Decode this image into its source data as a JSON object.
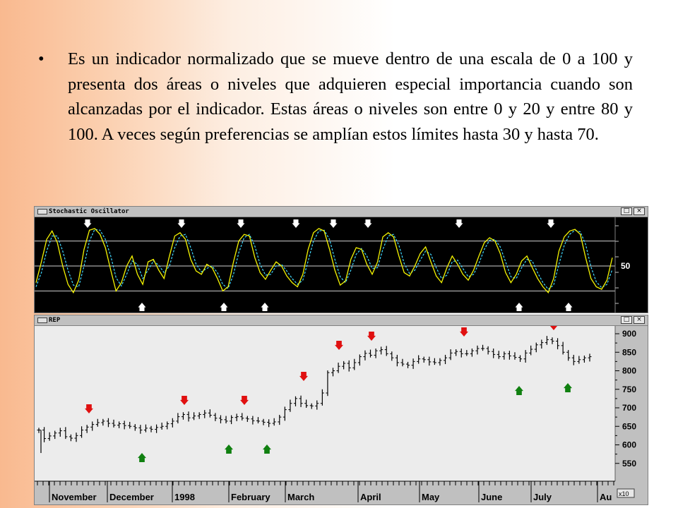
{
  "slide": {
    "bullet": "•",
    "text": "Es un indicador normalizado que se mueve dentro de una escala de 0 a 100 y presenta dos áreas o niveles que adquieren especial importancia cuando son alcanzadas por el indicador. Estas áreas o niveles son entre 0 y 20 y entre 80 y 100. A veces según preferencias se amplían estos límites hasta 30 y hasta 70."
  },
  "osc_window": {
    "title": "Stochastic Oscillator",
    "axis_label": "50",
    "restore_glyph": "□",
    "close_glyph": "×"
  },
  "price_window": {
    "title": "REP",
    "restore_glyph": "□",
    "close_glyph": "×",
    "scale_note": "x10"
  },
  "colors": {
    "osc_background": "#000000",
    "k_line": "#f4f400",
    "d_line": "#40d8ff",
    "osc_levels": "#d0d0d0",
    "price_background": "#ececec",
    "sell_arrow": "#e01010",
    "buy_arrow": "#108010",
    "osc_arrow": "#ffffff"
  },
  "chart_data": [
    {
      "type": "line",
      "title": "Stochastic Oscillator",
      "ylim": [
        0,
        100
      ],
      "reference_levels": [
        20,
        50,
        80
      ],
      "y_ticks": [
        "50"
      ],
      "series": [
        {
          "values": [
            30,
            55,
            82,
            92,
            78,
            50,
            28,
            18,
            33,
            70,
            93,
            95,
            88,
            72,
            45,
            20,
            30,
            50,
            62,
            40,
            28,
            55,
            58,
            45,
            35,
            62,
            86,
            90,
            82,
            58,
            44,
            40,
            52,
            48,
            35,
            20,
            25,
            55,
            80,
            88,
            86,
            60,
            42,
            34,
            45,
            55,
            50,
            38,
            30,
            25,
            40,
            70,
            90,
            95,
            92,
            70,
            45,
            27,
            32,
            58,
            72,
            70,
            52,
            40,
            55,
            85,
            90,
            85,
            62,
            42,
            38,
            50,
            65,
            73,
            55,
            38,
            30,
            48,
            62,
            52,
            40,
            33,
            45,
            62,
            78,
            84,
            80,
            65,
            42,
            30,
            40,
            56,
            62,
            48,
            35,
            25,
            18,
            35,
            68,
            85,
            92,
            94,
            88,
            60,
            35,
            25,
            22,
            33,
            60
          ]
        },
        {
          "values": [
            25,
            42,
            68,
            86,
            86,
            68,
            45,
            27,
            25,
            50,
            80,
            94,
            93,
            82,
            62,
            36,
            26,
            40,
            56,
            52,
            35,
            45,
            56,
            51,
            42,
            50,
            72,
            86,
            88,
            72,
            52,
            43,
            47,
            50,
            42,
            28,
            23,
            40,
            66,
            84,
            88,
            74,
            52,
            39,
            40,
            50,
            52,
            44,
            35,
            28,
            33,
            56,
            80,
            92,
            93,
            82,
            58,
            37,
            30,
            45,
            64,
            71,
            62,
            47,
            48,
            70,
            86,
            88,
            75,
            53,
            41,
            45,
            57,
            68,
            64,
            48,
            35,
            39,
            55,
            57,
            47,
            37,
            40,
            53,
            70,
            81,
            82,
            73,
            55,
            37,
            35,
            48,
            58,
            56,
            42,
            30,
            22,
            27,
            52,
            75,
            88,
            93,
            91,
            76,
            49,
            31,
            24,
            28,
            46
          ]
        }
      ]
    },
    {
      "type": "ohlc",
      "title": "REP",
      "ylim": [
        520,
        915
      ],
      "y_ticks": [
        "900",
        "850",
        "800",
        "750",
        "700",
        "650",
        "600",
        "550"
      ],
      "x_ticks": [
        "November",
        "December",
        "1998",
        "February",
        "March",
        "April",
        "May",
        "June",
        "July",
        "Au"
      ],
      "closes": [
        640,
        617,
        624,
        632,
        638,
        622,
        618,
        625,
        640,
        648,
        655,
        660,
        664,
        658,
        653,
        657,
        652,
        650,
        646,
        640,
        645,
        642,
        647,
        650,
        657,
        664,
        676,
        682,
        673,
        678,
        682,
        686,
        680,
        672,
        668,
        664,
        674,
        676,
        672,
        670,
        665,
        664,
        661,
        658,
        662,
        675,
        695,
        712,
        725,
        712,
        706,
        705,
        712,
        740,
        795,
        800,
        812,
        820,
        808,
        822,
        838,
        847,
        842,
        854,
        857,
        846,
        835,
        822,
        818,
        815,
        825,
        832,
        830,
        824,
        822,
        828,
        835,
        848,
        852,
        846,
        846,
        854,
        860,
        860,
        852,
        844,
        838,
        846,
        840,
        836,
        832,
        848,
        858,
        870,
        876,
        884,
        880,
        868,
        850,
        835,
        825,
        830,
        835,
        838
      ],
      "sell_signals": [
        "early-November",
        "late-December",
        "early-February",
        "mid-February",
        "early-March",
        "mid-March",
        "early-April",
        "mid-June",
        "early-July"
      ],
      "buy_signals": [
        "early-December",
        "late-January",
        "mid-February",
        "late-June",
        "mid-July"
      ]
    }
  ]
}
